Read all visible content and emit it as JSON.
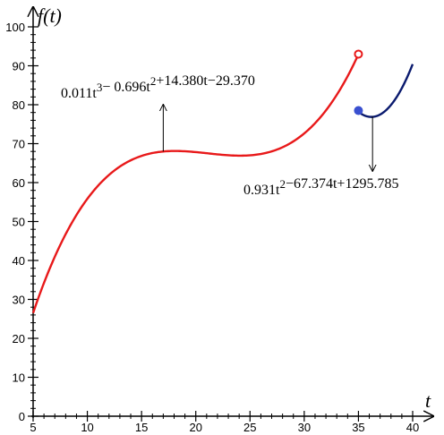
{
  "chart_data": {
    "type": "line",
    "title": "",
    "xlabel": "t",
    "ylabel": "f(t)",
    "xlim": [
      5,
      40
    ],
    "ylim": [
      0,
      100
    ],
    "x_ticks": [
      5,
      10,
      15,
      20,
      25,
      30,
      35,
      40
    ],
    "y_ticks": [
      0,
      10,
      20,
      30,
      40,
      50,
      60,
      70,
      80,
      90,
      100
    ],
    "grid": false,
    "legend": "none",
    "series": [
      {
        "color": "#e8191a",
        "domain": [
          5,
          35
        ],
        "coefficients": [
          0.011,
          -0.696,
          14.38,
          -29.37
        ],
        "end_marker": {
          "x": 35,
          "y": 93,
          "style": "open"
        }
      },
      {
        "color": "#0a1a6e",
        "domain": [
          35,
          40
        ],
        "coefficients": [
          0,
          0.931,
          -67.374,
          1295.785
        ],
        "start_marker": {
          "x": 35,
          "y": 78.5,
          "style": "filled",
          "color": "#3a50d0"
        }
      }
    ],
    "annotations": [
      {
        "id": "cubic",
        "base": "0.011",
        "terms": [
          {
            "text": "0.011t"
          },
          {
            "sup": "3"
          },
          {
            "text": "− 0.696t"
          },
          {
            "sup": "2"
          },
          {
            "text": "+14.380t−29.370"
          }
        ],
        "arrow_from": {
          "x": 17,
          "y": 68
        },
        "arrow_to": {
          "x": 17,
          "y": 80
        },
        "arrow_dir": "up"
      },
      {
        "id": "quadratic",
        "terms": [
          {
            "text": "0.931t"
          },
          {
            "sup": "2"
          },
          {
            "text": "−67.374t+1295.785"
          }
        ],
        "arrow_from": {
          "x": 36.3,
          "y": 77
        },
        "arrow_to": {
          "x": 36.3,
          "y": 63
        },
        "arrow_dir": "down"
      }
    ]
  }
}
